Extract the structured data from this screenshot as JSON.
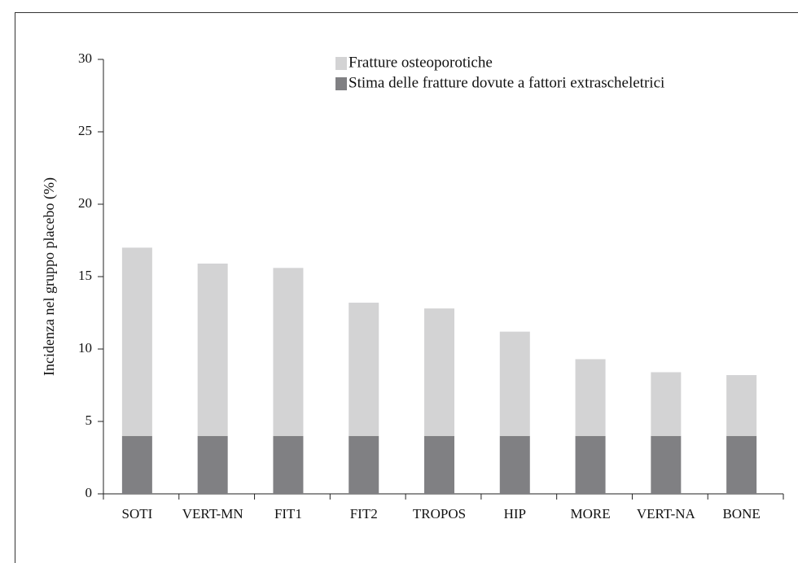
{
  "chart_data": {
    "type": "stacked_bar",
    "y_label": "Incidenza nel gruppo placebo (%)",
    "categories": [
      "SOTI",
      "VERT-MN",
      "FIT1",
      "FIT2",
      "TROPOS",
      "HIP",
      "MORE",
      "VERT-NA",
      "BONE"
    ],
    "series": [
      {
        "name": "Stima delle fratture dovute a fattori extrascheletrici",
        "color": "#808083",
        "values": [
          4,
          4,
          4,
          4,
          4,
          4,
          4,
          4,
          4
        ]
      },
      {
        "name": "Fratture osteoporotiche",
        "color": "#d3d3d4",
        "values": [
          13,
          11.9,
          11.6,
          9.2,
          8.8,
          7.2,
          5.3,
          4.4,
          4.2
        ]
      }
    ],
    "ylim": [
      0,
      30
    ],
    "yticks": [
      0,
      5,
      10,
      15,
      20,
      25,
      30
    ],
    "grid": false
  }
}
